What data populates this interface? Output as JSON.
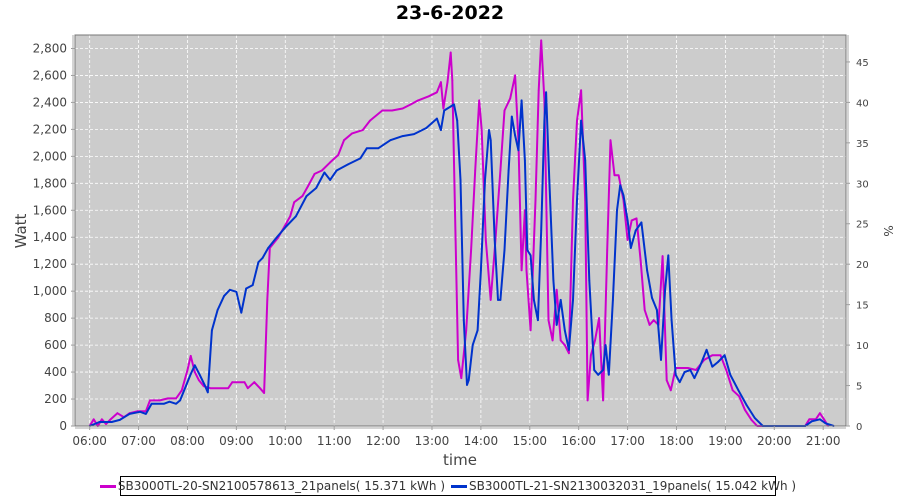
{
  "chart_data": {
    "type": "line",
    "title": "23-6-2022",
    "xlabel": "time",
    "ylabel": "Watt",
    "y2label": "%",
    "xlim": [
      "05:42",
      "21:28"
    ],
    "ylim": [
      0,
      2900
    ],
    "y2lim": [
      0,
      48.33
    ],
    "grid": true,
    "background": "#cccccc",
    "legend_position": "bottom",
    "x_ticks": [
      "06:00",
      "07:00",
      "08:00",
      "09:00",
      "10:00",
      "11:00",
      "12:00",
      "13:00",
      "14:00",
      "15:00",
      "16:00",
      "17:00",
      "18:00",
      "19:00",
      "20:00",
      "21:00"
    ],
    "y_ticks": [
      "0",
      "200",
      "400",
      "600",
      "800",
      "1,000",
      "1,200",
      "1,400",
      "1,600",
      "1,800",
      "2,000",
      "2,200",
      "2,400",
      "2,600",
      "2,800"
    ],
    "y2_ticks": [
      "0",
      "5",
      "10",
      "15",
      "20",
      "25",
      "30",
      "35",
      "40",
      "45"
    ],
    "series": [
      {
        "name": "SB3000TL-20-SN2100578613_21panels( 15.371 kWh )",
        "color": "#cc00cc",
        "points": [
          [
            "06:00",
            0
          ],
          [
            "06:05",
            50
          ],
          [
            "06:10",
            0
          ],
          [
            "06:15",
            50
          ],
          [
            "06:20",
            15
          ],
          [
            "06:25",
            45
          ],
          [
            "06:34",
            95
          ],
          [
            "06:42",
            65
          ],
          [
            "06:49",
            95
          ],
          [
            "06:59",
            110
          ],
          [
            "07:09",
            110
          ],
          [
            "07:14",
            190
          ],
          [
            "07:26",
            190
          ],
          [
            "07:36",
            205
          ],
          [
            "07:46",
            205
          ],
          [
            "07:53",
            265
          ],
          [
            "08:00",
            415
          ],
          [
            "08:04",
            520
          ],
          [
            "08:09",
            400
          ],
          [
            "08:14",
            340
          ],
          [
            "08:20",
            295
          ],
          [
            "08:28",
            280
          ],
          [
            "08:50",
            280
          ],
          [
            "08:55",
            325
          ],
          [
            "09:10",
            325
          ],
          [
            "09:14",
            280
          ],
          [
            "09:22",
            325
          ],
          [
            "09:29",
            280
          ],
          [
            "09:34",
            245
          ],
          [
            "09:38",
            935
          ],
          [
            "09:41",
            1320
          ],
          [
            "09:51",
            1395
          ],
          [
            "09:59",
            1480
          ],
          [
            "10:06",
            1555
          ],
          [
            "10:11",
            1660
          ],
          [
            "10:21",
            1705
          ],
          [
            "10:28",
            1780
          ],
          [
            "10:36",
            1870
          ],
          [
            "10:45",
            1895
          ],
          [
            "10:55",
            1955
          ],
          [
            "11:05",
            2010
          ],
          [
            "11:12",
            2120
          ],
          [
            "11:22",
            2170
          ],
          [
            "11:35",
            2195
          ],
          [
            "11:44",
            2265
          ],
          [
            "11:59",
            2340
          ],
          [
            "12:11",
            2340
          ],
          [
            "12:24",
            2355
          ],
          [
            "12:34",
            2385
          ],
          [
            "12:43",
            2415
          ],
          [
            "12:56",
            2445
          ],
          [
            "13:06",
            2475
          ],
          [
            "13:11",
            2550
          ],
          [
            "13:14",
            2355
          ],
          [
            "13:19",
            2550
          ],
          [
            "13:23",
            2770
          ],
          [
            "13:25",
            2565
          ],
          [
            "13:29",
            1380
          ],
          [
            "13:32",
            490
          ],
          [
            "13:36",
            355
          ],
          [
            "13:42",
            710
          ],
          [
            "13:48",
            1305
          ],
          [
            "13:53",
            1895
          ],
          [
            "13:58",
            2415
          ],
          [
            "14:01",
            2195
          ],
          [
            "14:06",
            1380
          ],
          [
            "14:12",
            935
          ],
          [
            "14:17",
            1305
          ],
          [
            "14:24",
            1895
          ],
          [
            "14:29",
            2340
          ],
          [
            "14:36",
            2430
          ],
          [
            "14:42",
            2600
          ],
          [
            "14:46",
            2120
          ],
          [
            "14:50",
            1155
          ],
          [
            "14:54",
            1600
          ],
          [
            "14:56",
            1155
          ],
          [
            "15:01",
            710
          ],
          [
            "15:07",
            1675
          ],
          [
            "15:11",
            2490
          ],
          [
            "15:14",
            2860
          ],
          [
            "15:18",
            2415
          ],
          [
            "15:23",
            785
          ],
          [
            "15:28",
            635
          ],
          [
            "15:33",
            1010
          ],
          [
            "15:38",
            635
          ],
          [
            "15:43",
            600
          ],
          [
            "15:48",
            540
          ],
          [
            "15:53",
            1675
          ],
          [
            "15:58",
            2265
          ],
          [
            "16:03",
            2490
          ],
          [
            "16:08",
            1675
          ],
          [
            "16:11",
            190
          ],
          [
            "16:15",
            525
          ],
          [
            "16:20",
            635
          ],
          [
            "16:25",
            800
          ],
          [
            "16:30",
            190
          ],
          [
            "16:35",
            1305
          ],
          [
            "16:39",
            2120
          ],
          [
            "16:44",
            1860
          ],
          [
            "16:49",
            1860
          ],
          [
            "16:55",
            1675
          ],
          [
            "17:00",
            1380
          ],
          [
            "17:05",
            1525
          ],
          [
            "17:11",
            1540
          ],
          [
            "17:16",
            1230
          ],
          [
            "17:21",
            860
          ],
          [
            "17:27",
            750
          ],
          [
            "17:32",
            785
          ],
          [
            "17:38",
            750
          ],
          [
            "17:43",
            1260
          ],
          [
            "17:48",
            340
          ],
          [
            "17:53",
            265
          ],
          [
            "17:59",
            430
          ],
          [
            "18:14",
            430
          ],
          [
            "18:24",
            415
          ],
          [
            "18:34",
            490
          ],
          [
            "18:44",
            525
          ],
          [
            "18:54",
            525
          ],
          [
            "19:01",
            415
          ],
          [
            "19:09",
            265
          ],
          [
            "19:17",
            220
          ],
          [
            "19:24",
            120
          ],
          [
            "19:32",
            45
          ],
          [
            "19:39",
            0
          ],
          [
            "20:38",
            0
          ],
          [
            "20:43",
            50
          ],
          [
            "20:51",
            50
          ],
          [
            "20:56",
            95
          ],
          [
            "21:01",
            50
          ],
          [
            "21:06",
            0
          ]
        ]
      },
      {
        "name": "SB3000TL-21-SN2130032031_19panels( 15.042 kWh )",
        "color": "#0033cc",
        "points": [
          [
            "06:00",
            0
          ],
          [
            "06:12",
            30
          ],
          [
            "06:27",
            30
          ],
          [
            "06:37",
            45
          ],
          [
            "06:49",
            90
          ],
          [
            "07:02",
            105
          ],
          [
            "07:09",
            90
          ],
          [
            "07:16",
            165
          ],
          [
            "07:31",
            165
          ],
          [
            "07:38",
            180
          ],
          [
            "07:46",
            165
          ],
          [
            "07:51",
            190
          ],
          [
            "07:58",
            295
          ],
          [
            "08:04",
            385
          ],
          [
            "08:09",
            450
          ],
          [
            "08:15",
            380
          ],
          [
            "08:21",
            305
          ],
          [
            "08:25",
            250
          ],
          [
            "08:30",
            710
          ],
          [
            "08:37",
            860
          ],
          [
            "08:45",
            965
          ],
          [
            "08:52",
            1010
          ],
          [
            "09:00",
            995
          ],
          [
            "09:06",
            840
          ],
          [
            "09:12",
            1020
          ],
          [
            "09:20",
            1045
          ],
          [
            "09:27",
            1215
          ],
          [
            "09:32",
            1245
          ],
          [
            "09:39",
            1320
          ],
          [
            "09:49",
            1395
          ],
          [
            "10:01",
            1480
          ],
          [
            "10:13",
            1555
          ],
          [
            "10:26",
            1705
          ],
          [
            "10:38",
            1765
          ],
          [
            "10:48",
            1880
          ],
          [
            "10:55",
            1825
          ],
          [
            "11:03",
            1895
          ],
          [
            "11:17",
            1940
          ],
          [
            "11:32",
            1985
          ],
          [
            "11:40",
            2060
          ],
          [
            "11:54",
            2060
          ],
          [
            "12:09",
            2120
          ],
          [
            "12:24",
            2150
          ],
          [
            "12:38",
            2165
          ],
          [
            "12:53",
            2210
          ],
          [
            "13:06",
            2280
          ],
          [
            "13:11",
            2195
          ],
          [
            "13:15",
            2340
          ],
          [
            "13:23",
            2370
          ],
          [
            "13:27",
            2385
          ],
          [
            "13:31",
            2265
          ],
          [
            "13:35",
            1825
          ],
          [
            "13:39",
            785
          ],
          [
            "13:43",
            305
          ],
          [
            "13:45",
            340
          ],
          [
            "13:50",
            600
          ],
          [
            "13:56",
            710
          ],
          [
            "14:00",
            1155
          ],
          [
            "14:05",
            1825
          ],
          [
            "14:10",
            2195
          ],
          [
            "14:12",
            2120
          ],
          [
            "14:17",
            1380
          ],
          [
            "14:21",
            935
          ],
          [
            "14:24",
            935
          ],
          [
            "14:29",
            1305
          ],
          [
            "14:34",
            1895
          ],
          [
            "14:38",
            2295
          ],
          [
            "14:42",
            2155
          ],
          [
            "14:46",
            2045
          ],
          [
            "14:50",
            2415
          ],
          [
            "14:54",
            1970
          ],
          [
            "14:57",
            1305
          ],
          [
            "15:01",
            1265
          ],
          [
            "15:05",
            935
          ],
          [
            "15:10",
            785
          ],
          [
            "15:14",
            1450
          ],
          [
            "15:18",
            2265
          ],
          [
            "15:20",
            2475
          ],
          [
            "15:24",
            1825
          ],
          [
            "15:29",
            1080
          ],
          [
            "15:33",
            750
          ],
          [
            "15:38",
            935
          ],
          [
            "15:43",
            710
          ],
          [
            "15:48",
            565
          ],
          [
            "15:53",
            935
          ],
          [
            "15:58",
            1675
          ],
          [
            "16:03",
            2265
          ],
          [
            "16:08",
            1970
          ],
          [
            "16:13",
            1080
          ],
          [
            "16:19",
            415
          ],
          [
            "16:24",
            380
          ],
          [
            "16:30",
            415
          ],
          [
            "16:33",
            600
          ],
          [
            "16:37",
            380
          ],
          [
            "16:42",
            935
          ],
          [
            "16:47",
            1600
          ],
          [
            "16:51",
            1785
          ],
          [
            "16:55",
            1710
          ],
          [
            "17:00",
            1525
          ],
          [
            "17:04",
            1320
          ],
          [
            "17:10",
            1450
          ],
          [
            "17:17",
            1510
          ],
          [
            "17:24",
            1155
          ],
          [
            "17:30",
            950
          ],
          [
            "17:36",
            860
          ],
          [
            "17:41",
            490
          ],
          [
            "17:46",
            1010
          ],
          [
            "17:50",
            1265
          ],
          [
            "17:54",
            785
          ],
          [
            "17:59",
            380
          ],
          [
            "18:04",
            325
          ],
          [
            "18:10",
            400
          ],
          [
            "18:17",
            415
          ],
          [
            "18:22",
            355
          ],
          [
            "18:29",
            445
          ],
          [
            "18:37",
            565
          ],
          [
            "18:44",
            440
          ],
          [
            "18:51",
            475
          ],
          [
            "18:59",
            525
          ],
          [
            "19:06",
            380
          ],
          [
            "19:16",
            265
          ],
          [
            "19:26",
            155
          ],
          [
            "19:36",
            60
          ],
          [
            "19:46",
            0
          ],
          [
            "20:38",
            0
          ],
          [
            "20:46",
            35
          ],
          [
            "20:56",
            50
          ],
          [
            "21:03",
            20
          ],
          [
            "21:13",
            0
          ]
        ]
      }
    ]
  }
}
